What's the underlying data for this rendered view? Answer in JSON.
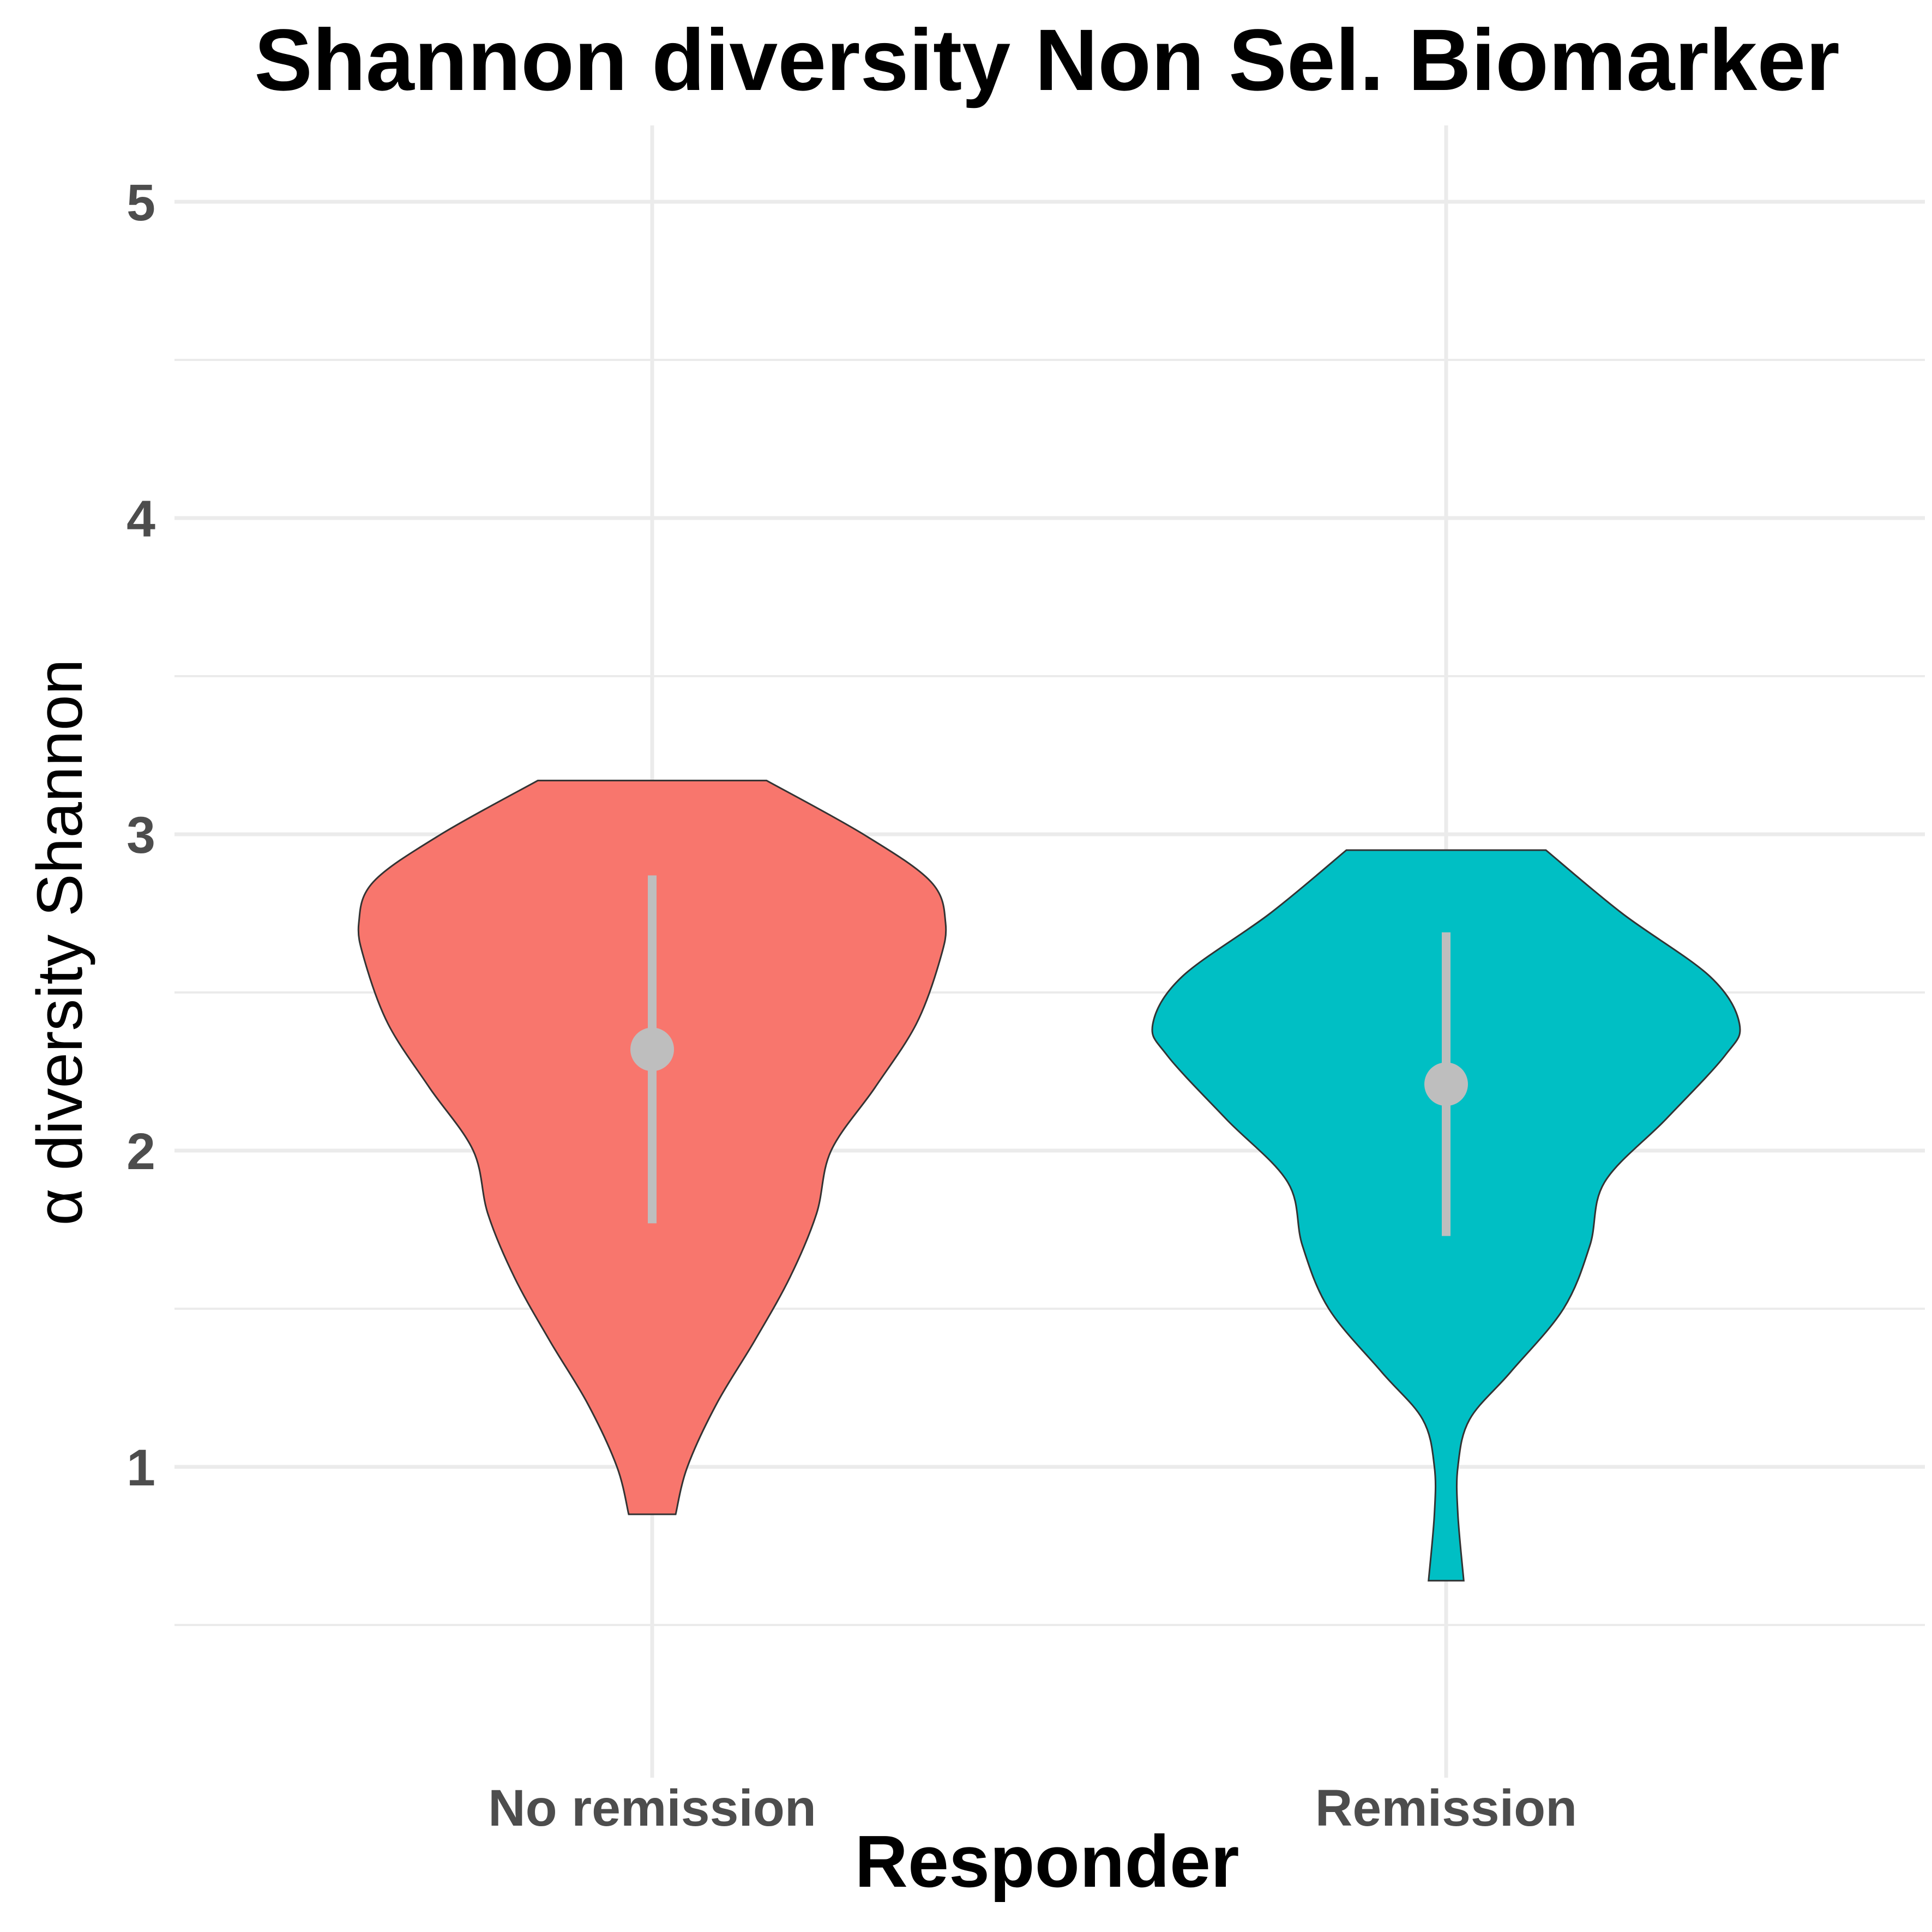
{
  "chart_data": {
    "type": "violin",
    "title": "Shannon diversity Non Sel. Biomarker",
    "xlabel": "Responder",
    "ylabel": "α diversity Shannon",
    "ylim": [
      0.2,
      5.25
    ],
    "y_ticks": [
      1,
      2,
      3,
      4,
      5
    ],
    "y_minor_ticks": [
      0.5,
      1.5,
      2.5,
      3.5,
      4.5
    ],
    "categories": [
      "No remission",
      "Remission"
    ],
    "grid": true,
    "legend": "none",
    "series": [
      {
        "category": "No remission",
        "color": "#f8766d",
        "min": 0.85,
        "max": 3.17,
        "median": 2.32,
        "range_low": 1.77,
        "range_high": 2.87,
        "density_profile": [
          {
            "y": 0.85,
            "w": 0.08
          },
          {
            "y": 1.0,
            "w": 0.12
          },
          {
            "y": 1.2,
            "w": 0.22
          },
          {
            "y": 1.4,
            "w": 0.35
          },
          {
            "y": 1.6,
            "w": 0.47
          },
          {
            "y": 1.8,
            "w": 0.56
          },
          {
            "y": 2.0,
            "w": 0.61
          },
          {
            "y": 2.2,
            "w": 0.76
          },
          {
            "y": 2.4,
            "w": 0.9
          },
          {
            "y": 2.6,
            "w": 0.98
          },
          {
            "y": 2.72,
            "w": 1.0
          },
          {
            "y": 2.85,
            "w": 0.95
          },
          {
            "y": 3.0,
            "w": 0.72
          },
          {
            "y": 3.17,
            "w": 0.39
          }
        ]
      },
      {
        "category": "Remission",
        "color": "#00bfc4",
        "min": 0.64,
        "max": 2.95,
        "median": 2.21,
        "range_low": 1.73,
        "range_high": 2.69,
        "density_profile": [
          {
            "y": 0.64,
            "w": 0.06
          },
          {
            "y": 0.85,
            "w": 0.04
          },
          {
            "y": 1.0,
            "w": 0.04
          },
          {
            "y": 1.15,
            "w": 0.08
          },
          {
            "y": 1.3,
            "w": 0.22
          },
          {
            "y": 1.5,
            "w": 0.4
          },
          {
            "y": 1.7,
            "w": 0.49
          },
          {
            "y": 1.9,
            "w": 0.54
          },
          {
            "y": 2.1,
            "w": 0.75
          },
          {
            "y": 2.3,
            "w": 0.95
          },
          {
            "y": 2.4,
            "w": 1.0
          },
          {
            "y": 2.55,
            "w": 0.9
          },
          {
            "y": 2.75,
            "w": 0.6
          },
          {
            "y": 2.95,
            "w": 0.34
          }
        ]
      }
    ]
  }
}
